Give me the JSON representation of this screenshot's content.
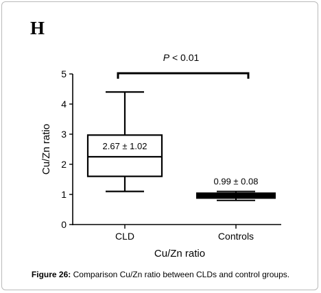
{
  "figure": {
    "panel_letter": "H",
    "caption_label": "Figure 26:",
    "caption_text": " Comparison Cu/Zn ratio between CLDs and control groups."
  },
  "chart_data": {
    "type": "box",
    "title": "",
    "xlabel": "Cu/Zn ratio",
    "ylabel": "Cu/Zn ratio",
    "ylim": [
      0,
      5
    ],
    "yticks": [
      0,
      1,
      2,
      3,
      4,
      5
    ],
    "categories": [
      "CLD",
      "Controls"
    ],
    "boxes": [
      {
        "category": "CLD",
        "min": 1.1,
        "q1": 1.6,
        "median": 2.25,
        "q3": 2.97,
        "max": 4.4,
        "label": "2.67 ± 1.02"
      },
      {
        "category": "Controls",
        "min": 0.8,
        "q1": 0.9,
        "median": 0.97,
        "q3": 1.02,
        "max": 1.1,
        "label": "0.99 ± 0.08"
      }
    ],
    "annotation": {
      "prefix": "P",
      "text": " < 0.01"
    },
    "grid": false,
    "legend": "none"
  }
}
